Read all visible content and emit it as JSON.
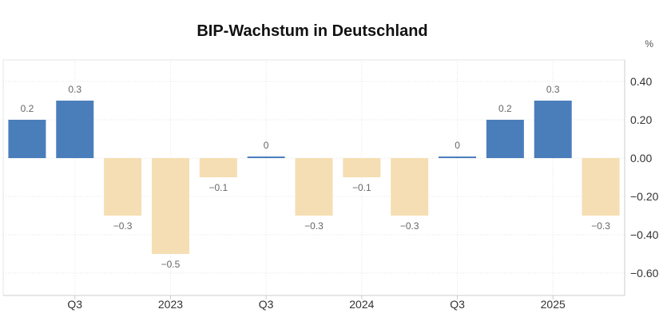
{
  "chart_data": {
    "type": "bar",
    "title": "BIP-Wachstum in Deutschland",
    "unit": "%",
    "categories": [
      "",
      "Q3",
      "",
      "2023",
      "",
      "Q3",
      "",
      "2024",
      "",
      "Q3",
      "",
      "2025",
      ""
    ],
    "values": [
      0.2,
      0.3,
      -0.3,
      -0.5,
      -0.1,
      0,
      -0.3,
      -0.1,
      -0.3,
      0,
      0.2,
      0.3,
      -0.3
    ],
    "data_labels": [
      "0.2",
      "0.3",
      "−0.3",
      "−0.5",
      "−0.1",
      "0",
      "−0.3",
      "−0.1",
      "−0.3",
      "0",
      "0.2",
      "0.3",
      "−0.3"
    ],
    "yticks": [
      0.4,
      0.2,
      0.0,
      -0.2,
      -0.4,
      -0.6
    ],
    "ytick_labels": [
      "0.40",
      "0.20",
      "0.00",
      "−0.20",
      "−0.40",
      "−0.60"
    ],
    "ylim": [
      -0.72,
      0.52
    ],
    "grid": true,
    "colors": {
      "positive": "#4a7ebb",
      "negative": "#f5deb3",
      "grid": "#e6e6e6"
    }
  }
}
